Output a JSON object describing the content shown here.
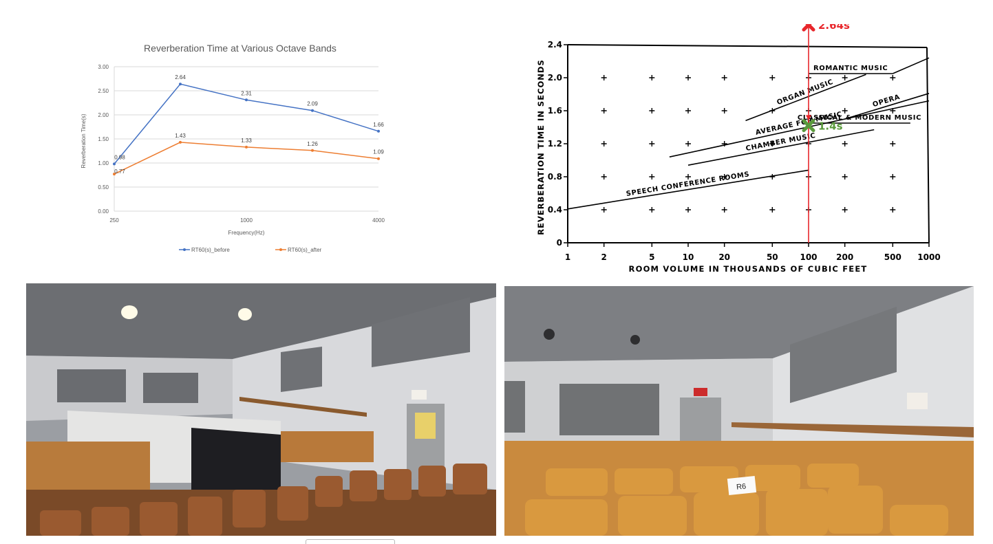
{
  "chart_data": [
    {
      "type": "line",
      "title": "Reverberation Time at Various Octave Bands",
      "xlabel": "Frequency(Hz)",
      "ylabel": "Reverberation Time(s)",
      "x": [
        250,
        500,
        1000,
        2000,
        4000
      ],
      "x_tick_labels": [
        "250",
        "1000",
        "4000"
      ],
      "x_scale": "log",
      "ylim": [
        0,
        3
      ],
      "y_ticks": [
        "0.00",
        "0.50",
        "1.00",
        "1.50",
        "2.00",
        "2.50",
        "3.00"
      ],
      "grid": "horizontal",
      "legend": "bottom",
      "series": [
        {
          "name": "RT60(s)_before",
          "color": "#4472c4",
          "values": [
            0.98,
            2.64,
            2.31,
            2.09,
            1.66
          ],
          "labels": [
            "0.98",
            "2.64",
            "2.31",
            "2.09",
            "1.66"
          ]
        },
        {
          "name": "RT60(s)_after",
          "color": "#ed7d31",
          "values": [
            0.77,
            1.43,
            1.33,
            1.26,
            1.09
          ],
          "labels": [
            "0.77",
            "1.43",
            "1.33",
            "1.26",
            "1.09"
          ]
        }
      ]
    },
    {
      "type": "line",
      "xlabel": "ROOM VOLUME IN THOUSANDS OF CUBIC FEET",
      "ylabel": "REVERBERATION TIME IN SECONDS",
      "x_scale": "log",
      "xlim": [
        1,
        1000
      ],
      "x_ticks": [
        "1",
        "2",
        "5",
        "10",
        "20",
        "50",
        "100",
        "200",
        "500",
        "1000"
      ],
      "ylim": [
        0,
        2.4
      ],
      "y_ticks": [
        "0",
        "0.4",
        "0.8",
        "1.2",
        "1.6",
        "2.0",
        "2.4"
      ],
      "grid_marks": "plus",
      "series": [
        {
          "name": "SPEECH CONFERENCE ROOMS",
          "x": [
            1,
            100
          ],
          "y": [
            0.41,
            0.88
          ]
        },
        {
          "name": "CHAMBER MUSIC",
          "x": [
            10,
            350
          ],
          "y": [
            0.94,
            1.37
          ]
        },
        {
          "name": "AVERAGE FOR MUSIC",
          "x": [
            7,
            1000
          ],
          "y": [
            1.04,
            1.72
          ]
        },
        {
          "name": "CLASSICAL & MODERN MUSIC",
          "x": [
            100,
            700
          ],
          "y": [
            1.45,
            1.45
          ]
        },
        {
          "name": "OPERA",
          "x": [
            200,
            1000
          ],
          "y": [
            1.5,
            1.81
          ]
        },
        {
          "name": "ORGAN MUSIC",
          "x": [
            30,
            300
          ],
          "y": [
            1.48,
            2.04
          ]
        },
        {
          "name": "ROMANTIC MUSIC",
          "x": [
            100,
            500
          ],
          "y": [
            2.05,
            2.05
          ]
        }
      ],
      "series_extra_segments": [
        {
          "series": "ROMANTIC MUSIC",
          "x": [
            500,
            1000
          ],
          "y": [
            2.05,
            2.24
          ]
        }
      ],
      "marker_line": {
        "x": 100,
        "color": "#e8262b"
      },
      "annotations": [
        {
          "label": "2.64s",
          "x": 100,
          "y": 2.64,
          "color": "#e8262b",
          "marker": "x"
        },
        {
          "label": "1.4s",
          "x": 100,
          "y": 1.42,
          "color": "#5a9a3c",
          "marker": "x"
        }
      ]
    }
  ],
  "photos": [
    {
      "caption": ""
    },
    {
      "seat_sign": "R6"
    }
  ]
}
